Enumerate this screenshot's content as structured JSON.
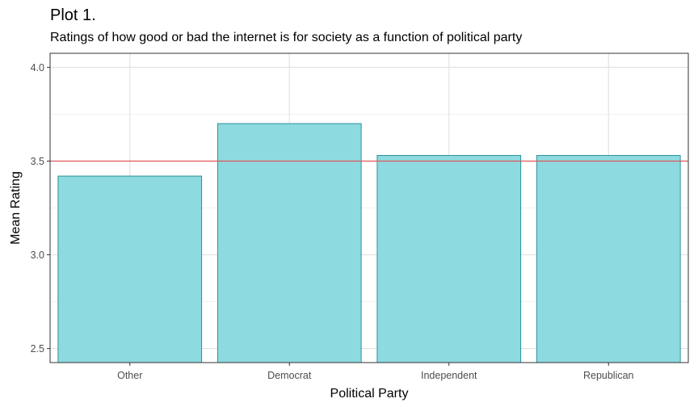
{
  "chart_data": {
    "type": "bar",
    "title": "Plot 1.",
    "subtitle": "Ratings of how good or bad the internet is for society as a function of political party",
    "xlabel": "Political Party",
    "ylabel": "Mean Rating",
    "categories": [
      "Other",
      "Democrat",
      "Independent",
      "Republican"
    ],
    "values": [
      3.42,
      3.7,
      3.53,
      3.53
    ],
    "ylim": [
      2.425,
      4.075
    ],
    "yticks": [
      2.5,
      3.0,
      3.5,
      4.0
    ],
    "ytick_labels": [
      "2.5",
      "3.0",
      "3.5",
      "4.0"
    ],
    "reference_line": 3.5,
    "grid": true,
    "colors": {
      "bar_fill": "#8bd9df",
      "bar_stroke": "#1f8a8f",
      "reference_line": "#e05a5a",
      "grid_major": "#e3e3e3",
      "grid_minor": "#f1f1f1",
      "panel_border": "#333333"
    }
  }
}
